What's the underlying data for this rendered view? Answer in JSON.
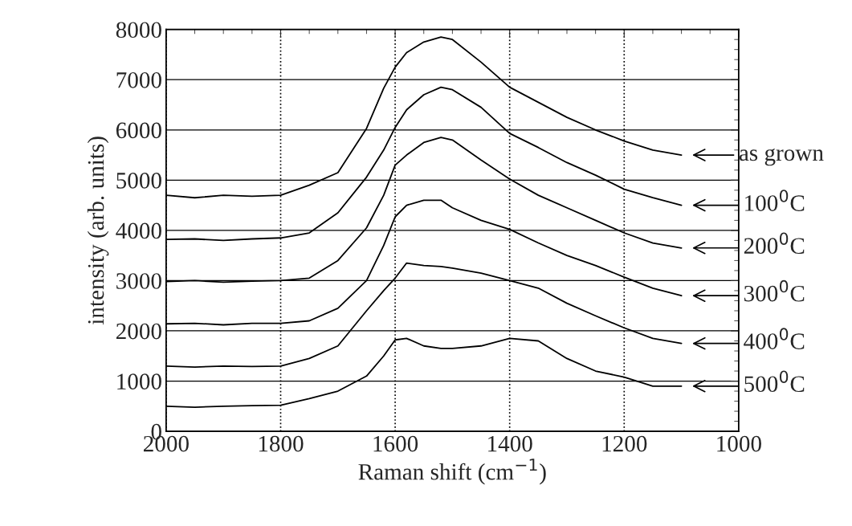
{
  "chart_data": {
    "type": "line",
    "xlabel": "Raman shift (cm$^{−1}$)",
    "ylabel": "intensity (arb. units)",
    "x": [
      2000,
      1950,
      1900,
      1850,
      1800,
      1750,
      1700,
      1650,
      1620,
      1600,
      1580,
      1550,
      1520,
      1500,
      1450,
      1400,
      1350,
      1300,
      1250,
      1200,
      1150,
      1100
    ],
    "series": [
      {
        "name": "as grown",
        "color": "#000000",
        "values": [
          4700,
          4650,
          4700,
          4680,
          4700,
          4900,
          5150,
          6030,
          6830,
          7250,
          7540,
          7750,
          7850,
          7800,
          7350,
          6850,
          6550,
          6250,
          6000,
          5780,
          5600,
          5500
        ]
      },
      {
        "name": "100$^{0}$C",
        "color": "#000000",
        "values": [
          3820,
          3830,
          3800,
          3830,
          3850,
          3950,
          4350,
          5060,
          5600,
          6050,
          6400,
          6700,
          6850,
          6800,
          6450,
          5930,
          5650,
          5350,
          5100,
          4820,
          4650,
          4500
        ]
      },
      {
        "name": "200$^{0}$C",
        "color": "#000000",
        "values": [
          2980,
          3000,
          2970,
          2990,
          3000,
          3050,
          3400,
          4050,
          4700,
          5300,
          5500,
          5750,
          5850,
          5800,
          5400,
          5020,
          4700,
          4450,
          4200,
          3950,
          3750,
          3650
        ]
      },
      {
        "name": "300$^{0}$C",
        "color": "#000000",
        "values": [
          2140,
          2150,
          2120,
          2150,
          2150,
          2200,
          2450,
          3000,
          3700,
          4270,
          4500,
          4600,
          4600,
          4450,
          4200,
          4020,
          3750,
          3500,
          3300,
          3070,
          2850,
          2700
        ]
      },
      {
        "name": "400$^{0}$C",
        "color": "#000000",
        "values": [
          1300,
          1280,
          1300,
          1290,
          1300,
          1450,
          1700,
          2400,
          2800,
          3050,
          3350,
          3300,
          3280,
          3250,
          3150,
          3000,
          2850,
          2550,
          2300,
          2060,
          1850,
          1750
        ]
      },
      {
        "name": "500$^{0}$C",
        "color": "#000000",
        "values": [
          500,
          480,
          500,
          510,
          520,
          650,
          800,
          1100,
          1500,
          1820,
          1850,
          1700,
          1650,
          1650,
          1700,
          1850,
          1800,
          1450,
          1200,
          1080,
          900,
          900
        ]
      }
    ],
    "xlim": [
      2000,
      1000
    ],
    "xticks": [
      2000,
      1800,
      1600,
      1400,
      1200,
      1000
    ],
    "ylim": [
      0,
      8000
    ],
    "yticks": [
      0,
      1000,
      2000,
      3000,
      4000,
      5000,
      6000,
      7000,
      8000
    ],
    "grid": true,
    "marker": "none",
    "line_style": "solid"
  }
}
